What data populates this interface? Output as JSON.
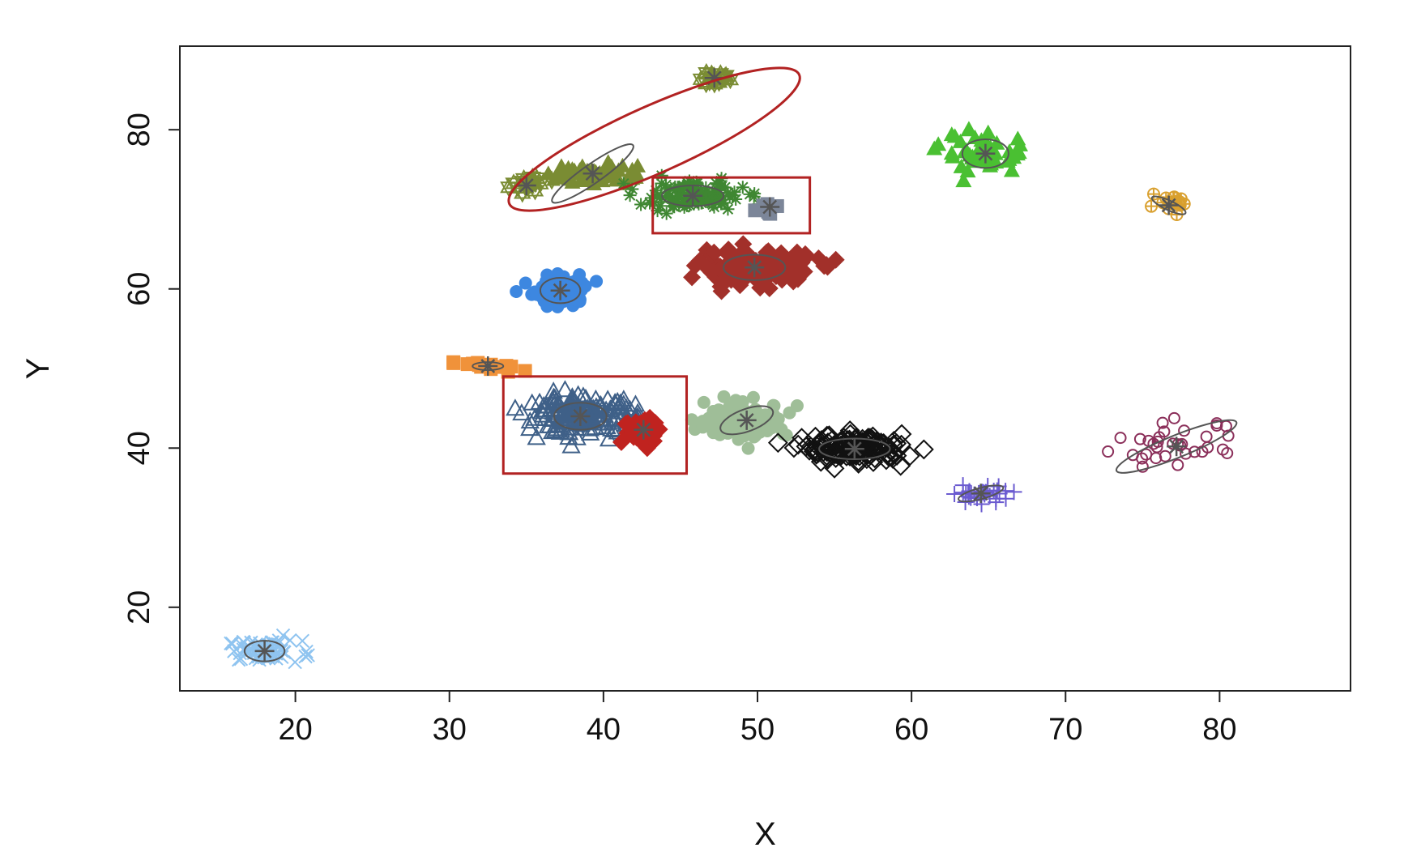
{
  "chart_data": {
    "type": "scatter",
    "title": "",
    "xlabel": "X",
    "ylabel": "Y",
    "xlim": [
      12.5,
      88.5
    ],
    "ylim": [
      9.5,
      90.5
    ],
    "xticks": [
      20,
      30,
      40,
      50,
      60,
      70,
      80
    ],
    "yticks": [
      20,
      40,
      60,
      80
    ],
    "grid": false,
    "legend": "none",
    "centroid_color": "#555555",
    "highlight_color": "#b22222",
    "clusters": [
      {
        "color": "#8fc4f0",
        "marker": "x",
        "center": [
          18.0,
          14.5
        ],
        "spread": [
          2.2,
          1.2
        ],
        "n": 70,
        "ellipse": {
          "rx": 1.3,
          "ry": 1.3,
          "angle": 0
        }
      },
      {
        "color": "#f0923a",
        "marker": "square",
        "center": [
          32.5,
          50.3
        ],
        "spread": [
          2.2,
          0.7
        ],
        "n": 14,
        "ellipse": {
          "rx": 1.0,
          "ry": 0.5,
          "angle": 0
        }
      },
      {
        "color": "#3d87e0",
        "marker": "circle-filled",
        "center": [
          37.2,
          59.8
        ],
        "spread": [
          1.6,
          1.8
        ],
        "n": 90,
        "ellipse": {
          "rx": 1.3,
          "ry": 1.6,
          "angle": 0
        }
      },
      {
        "color": "#7a8c33",
        "marker": "triangle-filled",
        "center": [
          39.3,
          74.5
        ],
        "spread": [
          2.6,
          1.3
        ],
        "n": 60,
        "ellipse": {
          "rx": 3.2,
          "ry": 1.2,
          "angle": 35
        }
      },
      {
        "color": "#7a8c33",
        "marker": "star-of-david",
        "center": [
          47.2,
          86.5
        ],
        "spread": [
          0.8,
          0.8
        ],
        "n": 16,
        "ellipse": null
      },
      {
        "color": "#7a8c33",
        "marker": "star-of-david",
        "center": [
          35.0,
          73.0
        ],
        "spread": [
          1.5,
          1.2
        ],
        "n": 18,
        "ellipse": null
      },
      {
        "color": "#3f8732",
        "marker": "asterisk",
        "center": [
          45.8,
          71.7
        ],
        "spread": [
          3.0,
          1.7
        ],
        "n": 120,
        "ellipse": {
          "rx": 2.0,
          "ry": 1.3,
          "angle": 0
        }
      },
      {
        "color": "#7c8699",
        "marker": "square-filled",
        "center": [
          50.8,
          70.3
        ],
        "spread": [
          0.7,
          0.6
        ],
        "n": 12,
        "ellipse": null
      },
      {
        "color": "#a2302a",
        "marker": "diamond-filled",
        "center": [
          49.8,
          62.7
        ],
        "spread": [
          3.3,
          1.8
        ],
        "n": 160,
        "ellipse": {
          "rx": 2.0,
          "ry": 1.6,
          "angle": 0
        }
      },
      {
        "color": "#4ac032",
        "marker": "triangle-filled",
        "center": [
          64.8,
          77.0
        ],
        "spread": [
          2.6,
          2.5
        ],
        "n": 50,
        "ellipse": {
          "rx": 1.5,
          "ry": 1.8,
          "angle": 0
        }
      },
      {
        "color": "#d9a02f",
        "marker": "circle-plus",
        "center": [
          76.7,
          70.5
        ],
        "spread": [
          1.2,
          0.9
        ],
        "n": 18,
        "ellipse": {
          "rx": 1.2,
          "ry": 0.6,
          "angle": -25
        }
      },
      {
        "color": "#3f6088",
        "marker": "triangle",
        "center": [
          38.5,
          44.0
        ],
        "spread": [
          3.2,
          2.1
        ],
        "n": 180,
        "ellipse": {
          "rx": 1.7,
          "ry": 1.7,
          "angle": 0
        }
      },
      {
        "color": "#c0231f",
        "marker": "diamond-filled",
        "center": [
          42.6,
          42.3
        ],
        "spread": [
          1.1,
          1.6
        ],
        "n": 60,
        "ellipse": null
      },
      {
        "color": "#9fbe98",
        "marker": "circle-filled",
        "center": [
          49.3,
          43.5
        ],
        "spread": [
          2.4,
          1.9
        ],
        "n": 140,
        "ellipse": {
          "rx": 1.8,
          "ry": 1.4,
          "angle": 20
        }
      },
      {
        "color": "#111111",
        "marker": "diamond",
        "center": [
          56.3,
          39.9
        ],
        "spread": [
          3.0,
          1.6
        ],
        "n": 150,
        "ellipse": {
          "rx": 2.3,
          "ry": 1.3,
          "angle": 0
        }
      },
      {
        "color": "#6a5ad0",
        "marker": "plus",
        "center": [
          64.5,
          34.3
        ],
        "spread": [
          1.9,
          1.0
        ],
        "n": 30,
        "ellipse": {
          "rx": 1.5,
          "ry": 0.7,
          "angle": 15
        }
      },
      {
        "color": "#8b2f5a",
        "marker": "circle",
        "center": [
          77.2,
          40.2
        ],
        "spread": [
          3.6,
          2.6
        ],
        "n": 34,
        "ellipse": {
          "rx": 4.2,
          "ry": 1.4,
          "angle": 22
        }
      }
    ],
    "highlights": [
      {
        "shape": "ellipse",
        "cx": 43.3,
        "cy": 78.8,
        "rx": 10.3,
        "ry": 4.2,
        "angle": 24
      },
      {
        "shape": "rect",
        "x0": 43.2,
        "x1": 53.4,
        "y0": 67.0,
        "y1": 74.0
      },
      {
        "shape": "rect",
        "x0": 33.5,
        "x1": 45.4,
        "y0": 36.8,
        "y1": 49.0
      }
    ]
  }
}
